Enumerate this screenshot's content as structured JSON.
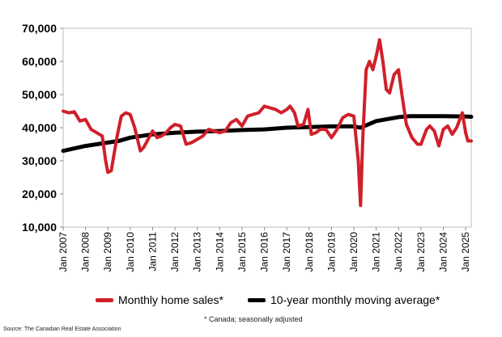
{
  "chart_data": {
    "type": "line",
    "ylim": [
      10000,
      70000
    ],
    "yticks": [
      10000,
      20000,
      30000,
      40000,
      50000,
      60000,
      70000
    ],
    "ytick_labels": [
      "10,000",
      "20,000",
      "30,000",
      "40,000",
      "50,000",
      "60,000",
      "70,000"
    ],
    "xlim": [
      2007.0,
      2025.25
    ],
    "xtick_labels": [
      "Jan 2007",
      "Jan 2008",
      "Jan 2009",
      "Jan 2010",
      "Jan 2011",
      "Jan 2012",
      "Jan 2013",
      "Jan 2014",
      "Jan 2015",
      "Jan 2016",
      "Jan 2017",
      "Jan 2018",
      "Jan 2019",
      "Jan 2020",
      "Jan 2021",
      "Jan 2022",
      "Jan 2023",
      "Jan 2024",
      "Jan 2025"
    ],
    "series": [
      {
        "name": "Monthly home sales*",
        "color": "#d0202a",
        "points": [
          [
            2007.0,
            45000
          ],
          [
            2007.25,
            44500
          ],
          [
            2007.5,
            44800
          ],
          [
            2007.75,
            42000
          ],
          [
            2008.0,
            42500
          ],
          [
            2008.25,
            39500
          ],
          [
            2008.5,
            38500
          ],
          [
            2008.75,
            37500
          ],
          [
            2008.9,
            30000
          ],
          [
            2009.0,
            26500
          ],
          [
            2009.15,
            27000
          ],
          [
            2009.4,
            37000
          ],
          [
            2009.6,
            43500
          ],
          [
            2009.8,
            44500
          ],
          [
            2010.0,
            44000
          ],
          [
            2010.2,
            40000
          ],
          [
            2010.45,
            33000
          ],
          [
            2010.6,
            34000
          ],
          [
            2010.8,
            36500
          ],
          [
            2011.0,
            39000
          ],
          [
            2011.2,
            37000
          ],
          [
            2011.4,
            37500
          ],
          [
            2011.6,
            38500
          ],
          [
            2011.8,
            40000
          ],
          [
            2012.0,
            41000
          ],
          [
            2012.25,
            40500
          ],
          [
            2012.5,
            35000
          ],
          [
            2012.75,
            35500
          ],
          [
            2013.0,
            36500
          ],
          [
            2013.25,
            37500
          ],
          [
            2013.5,
            39500
          ],
          [
            2013.75,
            39000
          ],
          [
            2014.0,
            38500
          ],
          [
            2014.25,
            39000
          ],
          [
            2014.5,
            41500
          ],
          [
            2014.75,
            42500
          ],
          [
            2015.0,
            40500
          ],
          [
            2015.25,
            43500
          ],
          [
            2015.5,
            44000
          ],
          [
            2015.75,
            44500
          ],
          [
            2016.0,
            46500
          ],
          [
            2016.25,
            46000
          ],
          [
            2016.5,
            45500
          ],
          [
            2016.75,
            44500
          ],
          [
            2017.0,
            45500
          ],
          [
            2017.15,
            46500
          ],
          [
            2017.35,
            44500
          ],
          [
            2017.5,
            40500
          ],
          [
            2017.75,
            41000
          ],
          [
            2017.95,
            45500
          ],
          [
            2018.1,
            38000
          ],
          [
            2018.3,
            38500
          ],
          [
            2018.5,
            39500
          ],
          [
            2018.75,
            39500
          ],
          [
            2019.0,
            37000
          ],
          [
            2019.25,
            39500
          ],
          [
            2019.5,
            43000
          ],
          [
            2019.75,
            44000
          ],
          [
            2020.0,
            43500
          ],
          [
            2020.2,
            30000
          ],
          [
            2020.3,
            16500
          ],
          [
            2020.4,
            37000
          ],
          [
            2020.55,
            57500
          ],
          [
            2020.7,
            60000
          ],
          [
            2020.85,
            57500
          ],
          [
            2021.0,
            61500
          ],
          [
            2021.15,
            66500
          ],
          [
            2021.3,
            60000
          ],
          [
            2021.45,
            51500
          ],
          [
            2021.6,
            50500
          ],
          [
            2021.8,
            56000
          ],
          [
            2022.0,
            57500
          ],
          [
            2022.15,
            50000
          ],
          [
            2022.35,
            41000
          ],
          [
            2022.6,
            37000
          ],
          [
            2022.85,
            35000
          ],
          [
            2023.0,
            35000
          ],
          [
            2023.25,
            39500
          ],
          [
            2023.4,
            40500
          ],
          [
            2023.6,
            39000
          ],
          [
            2023.8,
            34500
          ],
          [
            2024.0,
            39500
          ],
          [
            2024.2,
            40500
          ],
          [
            2024.4,
            38000
          ],
          [
            2024.6,
            40000
          ],
          [
            2024.85,
            44500
          ],
          [
            2025.0,
            38500
          ],
          [
            2025.1,
            36000
          ],
          [
            2025.25,
            36000
          ]
        ]
      },
      {
        "name": "10-year monthly moving average*",
        "color": "#000000",
        "points": [
          [
            2007.0,
            33000
          ],
          [
            2008.0,
            34500
          ],
          [
            2009.0,
            35500
          ],
          [
            2009.5,
            36000
          ],
          [
            2010.0,
            37000
          ],
          [
            2011.0,
            38000
          ],
          [
            2012.0,
            38500
          ],
          [
            2013.0,
            38800
          ],
          [
            2014.0,
            39000
          ],
          [
            2015.0,
            39300
          ],
          [
            2016.0,
            39500
          ],
          [
            2017.0,
            40000
          ],
          [
            2018.0,
            40200
          ],
          [
            2019.0,
            40400
          ],
          [
            2020.0,
            40400
          ],
          [
            2020.3,
            40000
          ],
          [
            2021.0,
            42000
          ],
          [
            2022.0,
            43200
          ],
          [
            2022.5,
            43500
          ],
          [
            2023.0,
            43500
          ],
          [
            2024.0,
            43500
          ],
          [
            2025.0,
            43400
          ],
          [
            2025.25,
            43300
          ]
        ]
      }
    ]
  },
  "legend": {
    "sales_label": "Monthly home sales*",
    "avg_label": "10-year monthly moving average*"
  },
  "footnote": "* Canada; seasonally adjusted",
  "source": "Source: The Canadian Real Estate Association"
}
